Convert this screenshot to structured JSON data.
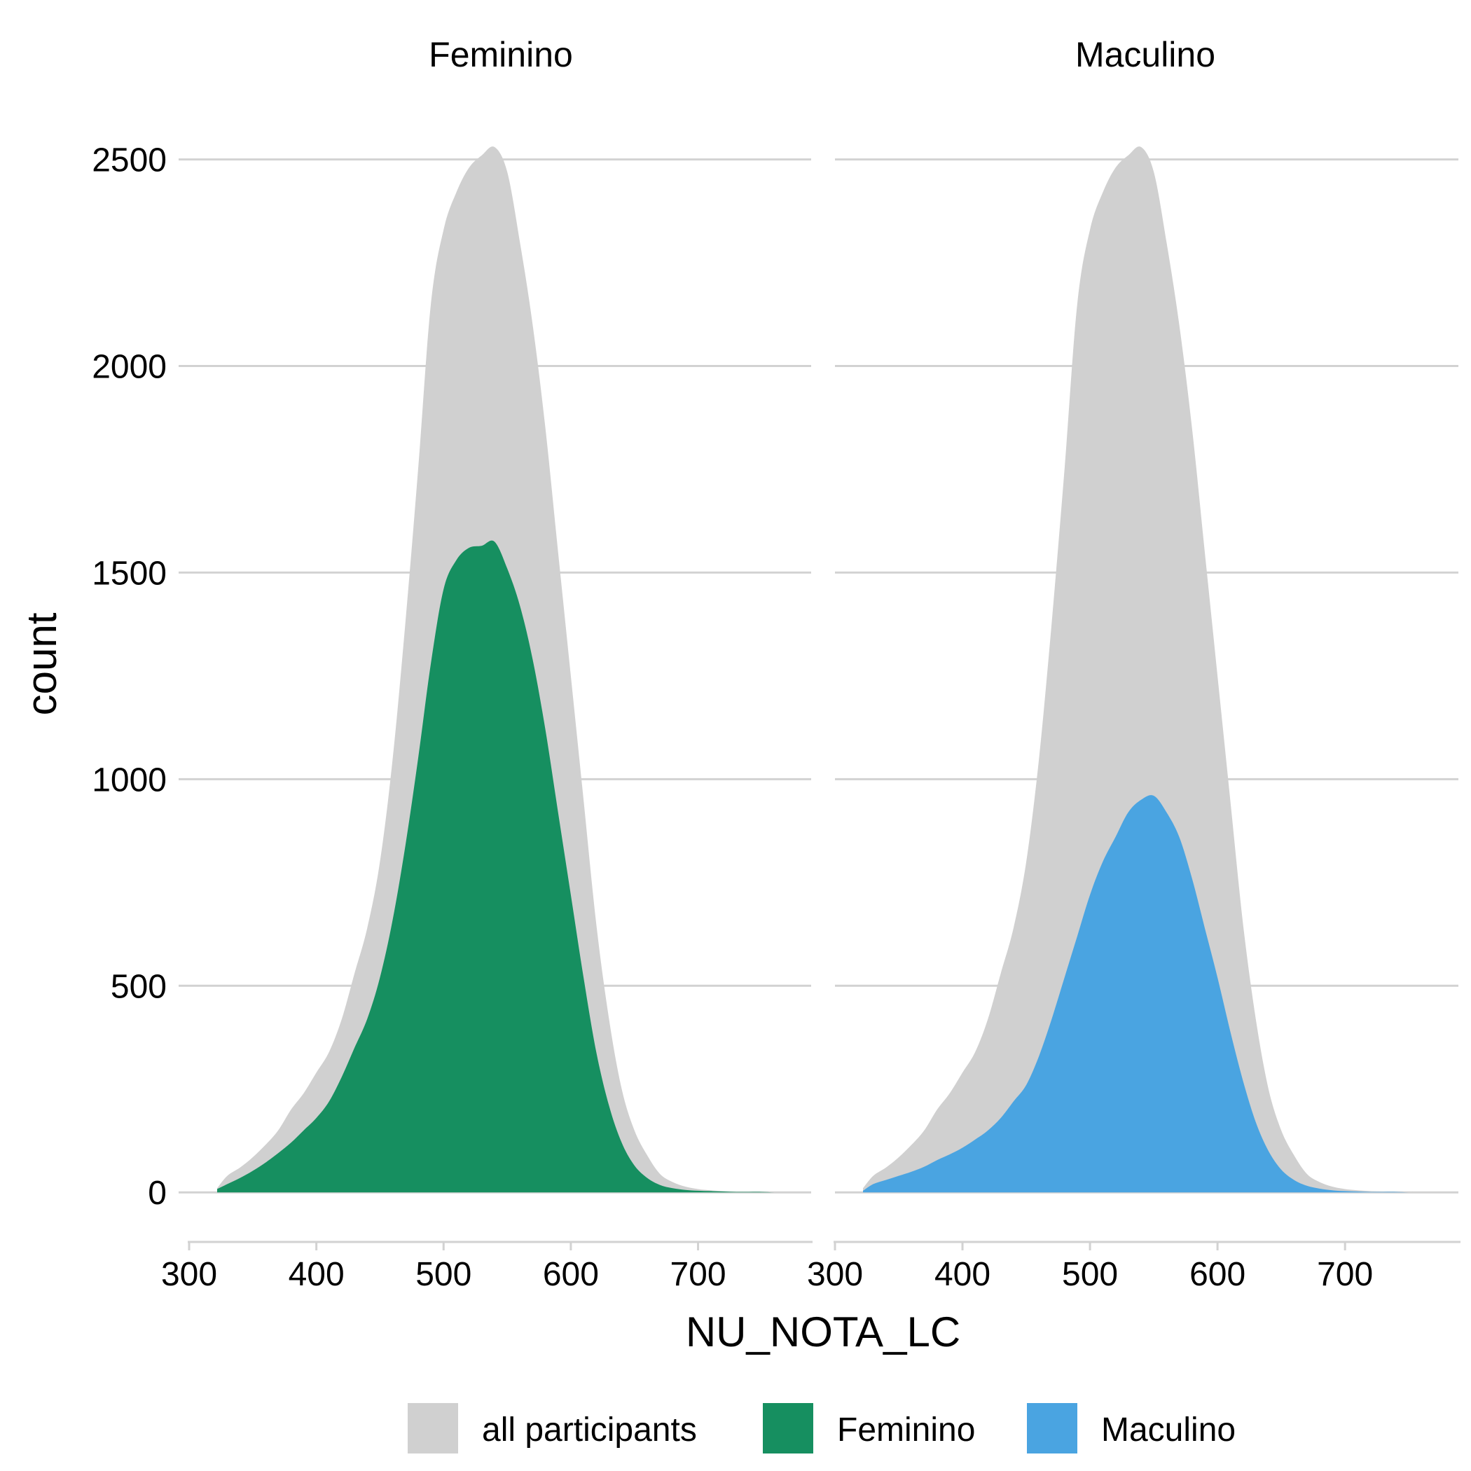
{
  "chart_data": {
    "type": "area",
    "xlabel": "NU_NOTA_LC",
    "ylabel": "count",
    "xlim": [
      300,
      790
    ],
    "ylim": [
      -120,
      2640
    ],
    "x_ticks": [
      300,
      400,
      500,
      600,
      700
    ],
    "y_ticks": [
      0,
      500,
      1000,
      1500,
      2000,
      2500
    ],
    "grid": true,
    "legend_position": "bottom",
    "legend": [
      {
        "label": "all participants",
        "color": "#d0d0d0"
      },
      {
        "label": "Feminino",
        "color": "#168f60"
      },
      {
        "label": "Maculino",
        "color": "#4aa4e1"
      }
    ],
    "x": [
      322,
      330,
      340,
      350,
      360,
      370,
      380,
      390,
      400,
      410,
      420,
      430,
      440,
      450,
      460,
      470,
      480,
      490,
      500,
      510,
      520,
      530,
      540,
      550,
      560,
      570,
      580,
      590,
      600,
      610,
      620,
      630,
      640,
      650,
      660,
      670,
      680,
      690,
      700,
      710,
      720,
      730,
      740,
      750,
      760,
      770
    ],
    "all_participants": [
      10,
      40,
      60,
      85,
      115,
      150,
      200,
      240,
      290,
      340,
      420,
      530,
      640,
      800,
      1050,
      1380,
      1750,
      2150,
      2330,
      2420,
      2480,
      2510,
      2530,
      2470,
      2300,
      2100,
      1850,
      1550,
      1250,
      950,
      650,
      420,
      250,
      150,
      90,
      45,
      25,
      14,
      8,
      5,
      3,
      2,
      1,
      1,
      0,
      0
    ],
    "panels": [
      {
        "title": "Feminino",
        "series": "Feminino",
        "values": [
          8,
          20,
          35,
          52,
          72,
          95,
          120,
          150,
          180,
          220,
          280,
          350,
          420,
          520,
          660,
          840,
          1050,
          1280,
          1460,
          1530,
          1560,
          1565,
          1575,
          1510,
          1420,
          1290,
          1120,
          920,
          720,
          520,
          340,
          210,
          120,
          65,
          35,
          18,
          10,
          6,
          4,
          3,
          2,
          1,
          1,
          1,
          0,
          0
        ]
      },
      {
        "title": "Maculino",
        "series": "Maculino",
        "values": [
          4,
          20,
          30,
          40,
          50,
          62,
          78,
          92,
          108,
          128,
          150,
          180,
          220,
          260,
          330,
          420,
          520,
          620,
          720,
          800,
          860,
          920,
          950,
          960,
          920,
          860,
          760,
          640,
          520,
          390,
          270,
          170,
          100,
          55,
          30,
          16,
          9,
          5,
          3,
          2,
          1,
          1,
          1,
          0,
          0,
          0
        ]
      }
    ]
  }
}
